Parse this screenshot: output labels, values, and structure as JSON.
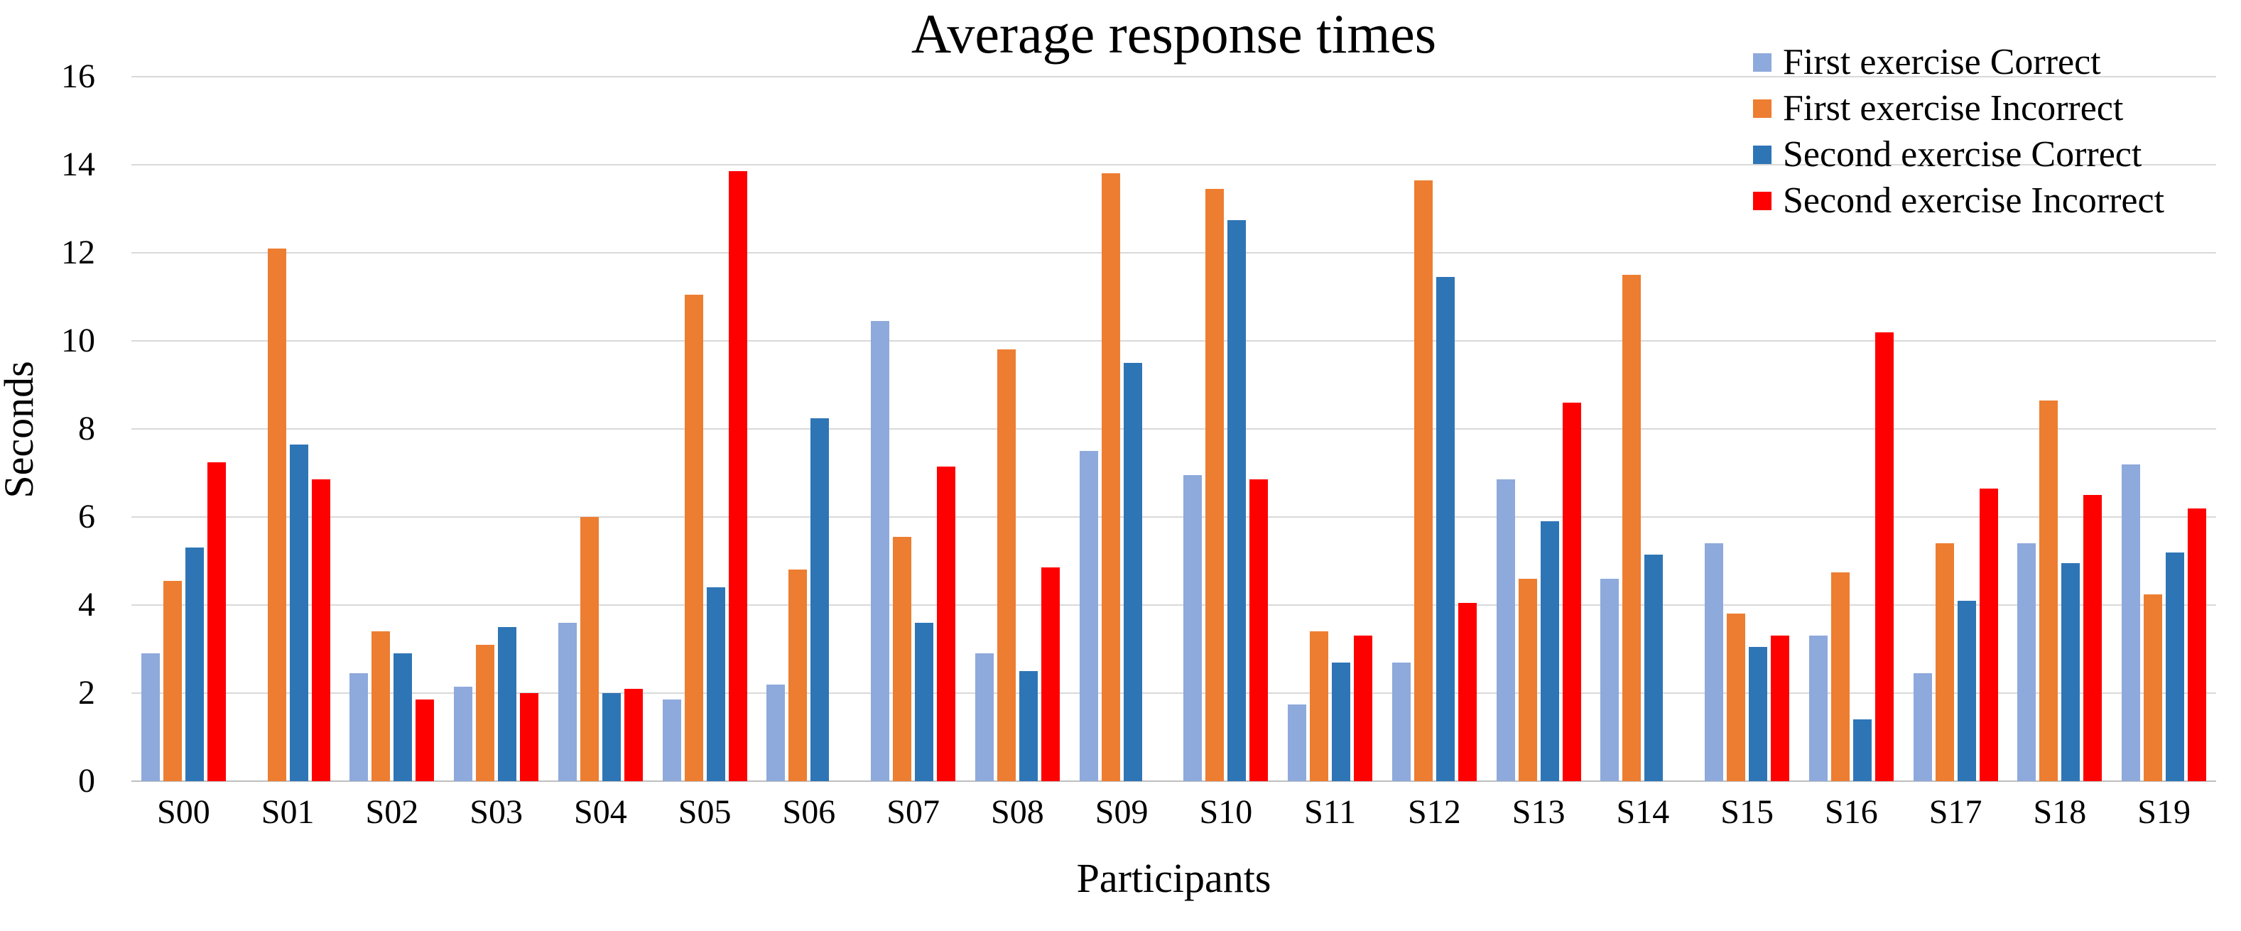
{
  "title": "Average response times",
  "y_axis": {
    "label": "Seconds",
    "ticks": [
      0,
      2,
      4,
      6,
      8,
      10,
      12,
      14,
      16
    ],
    "max": 16
  },
  "x_axis": {
    "label": "Participants"
  },
  "colors": {
    "first_correct": "#8EA9DB",
    "first_incorrect": "#ED7D31",
    "second_correct": "#2E75B6",
    "second_incorrect": "#FF0000",
    "gridline": "#D9D9D9",
    "baseline": "#BFBFBF"
  },
  "chart_data": {
    "type": "bar",
    "title": "Average response times",
    "xlabel": "Participants",
    "ylabel": "Seconds",
    "ylim": [
      0,
      16
    ],
    "grid": true,
    "legend_position": "top-right",
    "categories": [
      "S00",
      "S01",
      "S02",
      "S03",
      "S04",
      "S05",
      "S06",
      "S07",
      "S08",
      "S09",
      "S10",
      "S11",
      "S12",
      "S13",
      "S14",
      "S15",
      "S16",
      "S17",
      "S18",
      "S19"
    ],
    "series": [
      {
        "name": "First exercise Correct",
        "color": "#8EA9DB",
        "values": [
          2.9,
          0,
          2.45,
          2.15,
          3.6,
          1.85,
          2.2,
          10.45,
          2.9,
          7.5,
          6.95,
          1.75,
          2.7,
          6.85,
          4.6,
          5.4,
          3.3,
          2.45,
          5.4,
          7.2
        ]
      },
      {
        "name": "First exercise Incorrect",
        "color": "#ED7D31",
        "values": [
          4.55,
          12.1,
          3.4,
          3.1,
          6.0,
          11.05,
          4.8,
          5.55,
          9.8,
          13.8,
          13.45,
          3.4,
          13.65,
          4.6,
          11.5,
          3.8,
          4.75,
          5.4,
          8.65,
          4.25
        ]
      },
      {
        "name": "Second exercise Correct",
        "color": "#2E75B6",
        "values": [
          5.3,
          7.65,
          2.9,
          3.5,
          2.0,
          4.4,
          8.25,
          3.6,
          2.5,
          9.5,
          12.75,
          2.7,
          11.45,
          5.9,
          5.15,
          3.05,
          1.4,
          4.1,
          4.95,
          5.2
        ]
      },
      {
        "name": "Second exercise Incorrect",
        "color": "#FF0000",
        "values": [
          7.25,
          6.85,
          1.85,
          2.0,
          2.1,
          13.85,
          0,
          7.15,
          4.85,
          0,
          6.85,
          3.3,
          4.05,
          8.6,
          0,
          3.3,
          10.2,
          6.65,
          6.5,
          6.2
        ]
      }
    ]
  }
}
